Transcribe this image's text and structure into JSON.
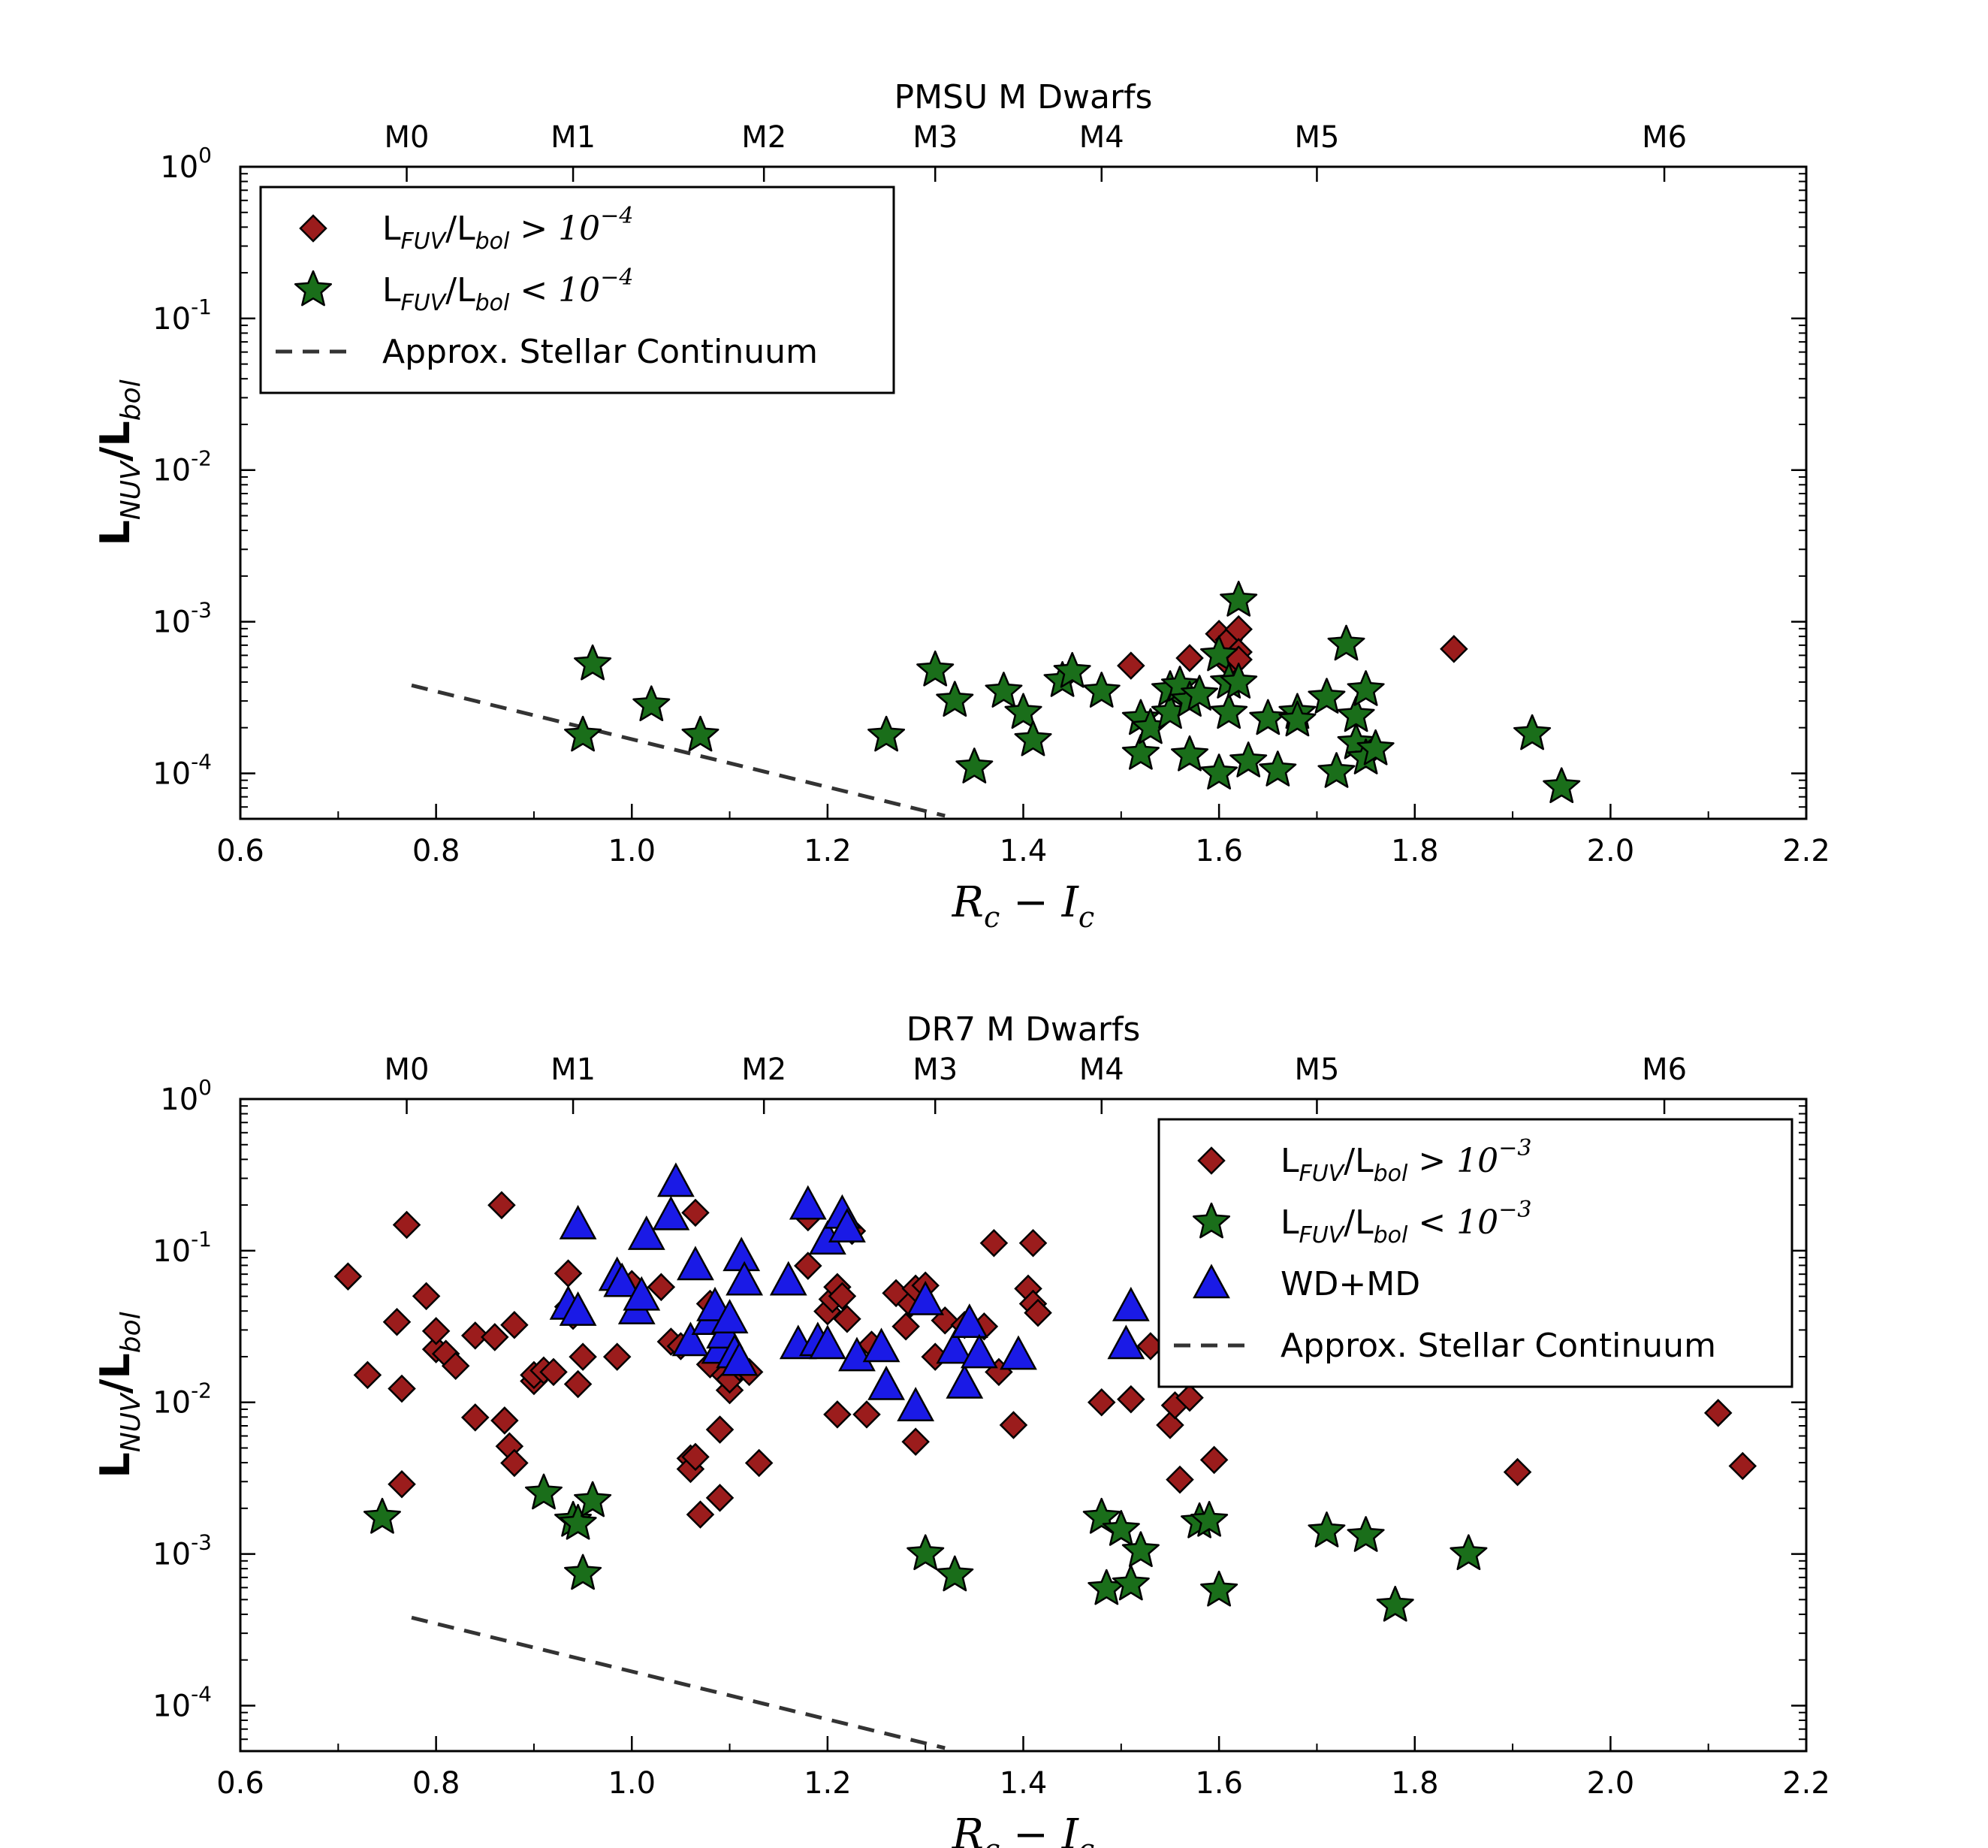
{
  "chart_data": [
    {
      "type": "scatter",
      "title": "PMSU M Dwarfs",
      "xlabel_main": "R",
      "xlabel_sub1": "c",
      "xlabel_minus": " − I",
      "xlabel_sub2": "c",
      "ylabel_main": "L",
      "ylabel_sub": "NUV",
      "ylabel_mid": "/L",
      "ylabel_sub2": "bol",
      "xlim": [
        0.6,
        2.2
      ],
      "ylim_log10": [
        -4.3,
        0
      ],
      "x_ticks": [
        "0.6",
        "0.8",
        "1.0",
        "1.2",
        "1.4",
        "1.6",
        "1.8",
        "2.0",
        "2.2"
      ],
      "x_tick_values": [
        0.6,
        0.8,
        1.0,
        1.2,
        1.4,
        1.6,
        1.8,
        2.0,
        2.2
      ],
      "y_tick_labels": [
        {
          "base": "10",
          "exp": "0",
          "value": 0
        },
        {
          "base": "10",
          "exp": "-1",
          "value": -1
        },
        {
          "base": "10",
          "exp": "-2",
          "value": -2
        },
        {
          "base": "10",
          "exp": "-3",
          "value": -3
        },
        {
          "base": "10",
          "exp": "-4",
          "value": -4
        }
      ],
      "top_ticks": [
        {
          "label": "M0",
          "x": 0.77
        },
        {
          "label": "M1",
          "x": 0.94
        },
        {
          "label": "M2",
          "x": 1.135
        },
        {
          "label": "M3",
          "x": 1.31
        },
        {
          "label": "M4",
          "x": 1.48
        },
        {
          "label": "M5",
          "x": 1.7
        },
        {
          "label": "M6",
          "x": 2.055
        }
      ],
      "legend": {
        "position": "upper-left",
        "entries": [
          {
            "marker": "diamond",
            "label_pre": "L",
            "label_sub": "FUV",
            "label_mid": "/L",
            "label_sub2": "bol",
            "label_op": " > ",
            "label_base": "10",
            "label_exp": "−4"
          },
          {
            "marker": "star",
            "label_pre": "L",
            "label_sub": "FUV",
            "label_mid": "/L",
            "label_sub2": "bol",
            "label_op": " < ",
            "label_base": "10",
            "label_exp": "−4"
          },
          {
            "marker": "dash",
            "label_text": "Approx. Stellar Continuum"
          }
        ]
      },
      "continuum": {
        "x": [
          0.775,
          1.32
        ],
        "log10y": [
          -3.42,
          -4.28
        ]
      },
      "series": [
        {
          "name": "LFUV/Lbol > 1e-4",
          "marker": "diamond",
          "color": "#9b1c1c",
          "points": [
            [
              1.51,
              -3.29
            ],
            [
              1.57,
              -3.24
            ],
            [
              1.6,
              -3.08
            ],
            [
              1.61,
              -3.12
            ],
            [
              1.62,
              -3.05
            ],
            [
              1.62,
              -3.2
            ],
            [
              1.61,
              -3.28
            ],
            [
              1.62,
              -3.25
            ],
            [
              1.84,
              -3.18
            ]
          ]
        },
        {
          "name": "LFUV/Lbol < 1e-4",
          "marker": "star",
          "color": "#1a6e1a",
          "points": [
            [
              0.95,
              -3.75
            ],
            [
              0.96,
              -3.28
            ],
            [
              1.02,
              -3.55
            ],
            [
              1.07,
              -3.75
            ],
            [
              1.26,
              -3.75
            ],
            [
              1.31,
              -3.32
            ],
            [
              1.33,
              -3.52
            ],
            [
              1.35,
              -3.96
            ],
            [
              1.38,
              -3.46
            ],
            [
              1.4,
              -3.6
            ],
            [
              1.41,
              -3.78
            ],
            [
              1.44,
              -3.39
            ],
            [
              1.45,
              -3.33
            ],
            [
              1.48,
              -3.46
            ],
            [
              1.52,
              -3.64
            ],
            [
              1.52,
              -3.87
            ],
            [
              1.53,
              -3.7
            ],
            [
              1.55,
              -3.45
            ],
            [
              1.55,
              -3.6
            ],
            [
              1.56,
              -3.42
            ],
            [
              1.57,
              -3.52
            ],
            [
              1.57,
              -3.88
            ],
            [
              1.58,
              -3.48
            ],
            [
              1.6,
              -4.0
            ],
            [
              1.6,
              -3.22
            ],
            [
              1.61,
              -3.4
            ],
            [
              1.61,
              -3.6
            ],
            [
              1.62,
              -2.86
            ],
            [
              1.62,
              -3.4
            ],
            [
              1.63,
              -3.92
            ],
            [
              1.65,
              -3.64
            ],
            [
              1.66,
              -3.98
            ],
            [
              1.68,
              -3.6
            ],
            [
              1.68,
              -3.65
            ],
            [
              1.71,
              -3.5
            ],
            [
              1.72,
              -3.99
            ],
            [
              1.73,
              -3.15
            ],
            [
              1.74,
              -3.62
            ],
            [
              1.74,
              -3.8
            ],
            [
              1.75,
              -3.45
            ],
            [
              1.75,
              -3.9
            ],
            [
              1.76,
              -3.84
            ],
            [
              1.92,
              -3.74
            ],
            [
              1.95,
              -4.09
            ]
          ]
        }
      ]
    },
    {
      "type": "scatter",
      "title": "DR7 M Dwarfs",
      "xlabel_main": "R",
      "xlabel_sub1": "c",
      "xlabel_minus": " − I",
      "xlabel_sub2": "c",
      "ylabel_main": "L",
      "ylabel_sub": "NUV",
      "ylabel_mid": "/L",
      "ylabel_sub2": "bol",
      "xlim": [
        0.6,
        2.2
      ],
      "ylim_log10": [
        -4.3,
        0
      ],
      "x_ticks": [
        "0.6",
        "0.8",
        "1.0",
        "1.2",
        "1.4",
        "1.6",
        "1.8",
        "2.0",
        "2.2"
      ],
      "x_tick_values": [
        0.6,
        0.8,
        1.0,
        1.2,
        1.4,
        1.6,
        1.8,
        2.0,
        2.2
      ],
      "y_tick_labels": [
        {
          "base": "10",
          "exp": "0",
          "value": 0
        },
        {
          "base": "10",
          "exp": "-1",
          "value": -1
        },
        {
          "base": "10",
          "exp": "-2",
          "value": -2
        },
        {
          "base": "10",
          "exp": "-3",
          "value": -3
        },
        {
          "base": "10",
          "exp": "-4",
          "value": -4
        }
      ],
      "top_ticks": [
        {
          "label": "M0",
          "x": 0.77
        },
        {
          "label": "M1",
          "x": 0.94
        },
        {
          "label": "M2",
          "x": 1.135
        },
        {
          "label": "M3",
          "x": 1.31
        },
        {
          "label": "M4",
          "x": 1.48
        },
        {
          "label": "M5",
          "x": 1.7
        },
        {
          "label": "M6",
          "x": 2.055
        }
      ],
      "legend": {
        "position": "upper-right",
        "entries": [
          {
            "marker": "diamond",
            "label_pre": "L",
            "label_sub": "FUV",
            "label_mid": "/L",
            "label_sub2": "bol",
            "label_op": " > ",
            "label_base": "10",
            "label_exp": "−3"
          },
          {
            "marker": "star",
            "label_pre": "L",
            "label_sub": "FUV",
            "label_mid": "/L",
            "label_sub2": "bol",
            "label_op": " < ",
            "label_base": "10",
            "label_exp": "−3"
          },
          {
            "marker": "triangle",
            "label_text": "WD+MD"
          },
          {
            "marker": "dash",
            "label_text": "Approx. Stellar Continuum"
          }
        ]
      },
      "continuum": {
        "x": [
          0.775,
          1.32
        ],
        "log10y": [
          -3.42,
          -4.28
        ]
      },
      "series": [
        {
          "name": "LFUV/Lbol > 1e-3",
          "marker": "diamond",
          "color": "#9b1c1c",
          "points": [
            [
              0.71,
              -1.17
            ],
            [
              0.73,
              -1.82
            ],
            [
              0.76,
              -1.47
            ],
            [
              0.765,
              -1.91
            ],
            [
              0.765,
              -2.54
            ],
            [
              0.77,
              -0.83
            ],
            [
              0.79,
              -1.3
            ],
            [
              0.8,
              -1.65
            ],
            [
              0.8,
              -1.53
            ],
            [
              0.81,
              -1.68
            ],
            [
              0.82,
              -1.76
            ],
            [
              0.84,
              -1.56
            ],
            [
              0.84,
              -2.1
            ],
            [
              0.86,
              -1.57
            ],
            [
              0.867,
              -0.7
            ],
            [
              0.87,
              -2.12
            ],
            [
              0.875,
              -2.29
            ],
            [
              0.88,
              -2.4
            ],
            [
              0.88,
              -1.49
            ],
            [
              0.9,
              -1.86
            ],
            [
              0.9,
              -1.82
            ],
            [
              0.91,
              -1.79
            ],
            [
              0.92,
              -1.8
            ],
            [
              0.935,
              -1.15
            ],
            [
              0.935,
              -1.37
            ],
            [
              0.94,
              -1.43
            ],
            [
              0.945,
              -1.88
            ],
            [
              0.95,
              -1.7
            ],
            [
              0.985,
              -1.7
            ],
            [
              1.0,
              -1.22
            ],
            [
              1.03,
              -1.24
            ],
            [
              1.04,
              -1.6
            ],
            [
              1.05,
              -1.63
            ],
            [
              1.06,
              -2.37
            ],
            [
              1.06,
              -2.44
            ],
            [
              1.065,
              -2.36
            ],
            [
              1.065,
              -0.75
            ],
            [
              1.07,
              -2.74
            ],
            [
              1.08,
              -1.75
            ],
            [
              1.08,
              -1.35
            ],
            [
              1.09,
              -2.18
            ],
            [
              1.09,
              -2.63
            ],
            [
              1.095,
              -1.82
            ],
            [
              1.1,
              -1.92
            ],
            [
              1.1,
              -1.85
            ],
            [
              1.11,
              -1.77
            ],
            [
              1.12,
              -1.8
            ],
            [
              1.13,
              -2.4
            ],
            [
              1.18,
              -1.1
            ],
            [
              1.18,
              -0.78
            ],
            [
              1.2,
              -1.4
            ],
            [
              1.205,
              -1.32
            ],
            [
              1.21,
              -1.24
            ],
            [
              1.215,
              -1.3
            ],
            [
              1.22,
              -1.45
            ],
            [
              1.21,
              -2.08
            ],
            [
              1.225,
              -0.87
            ],
            [
              1.24,
              -2.08
            ],
            [
              1.245,
              -1.62
            ],
            [
              1.27,
              -1.28
            ],
            [
              1.28,
              -1.5
            ],
            [
              1.285,
              -1.35
            ],
            [
              1.29,
              -1.25
            ],
            [
              1.29,
              -2.26
            ],
            [
              1.3,
              -1.23
            ],
            [
              1.31,
              -1.7
            ],
            [
              1.32,
              -1.46
            ],
            [
              1.34,
              -1.49
            ],
            [
              1.36,
              -1.5
            ],
            [
              1.37,
              -0.95
            ],
            [
              1.375,
              -1.8
            ],
            [
              1.39,
              -2.15
            ],
            [
              1.405,
              -1.25
            ],
            [
              1.41,
              -0.95
            ],
            [
              1.41,
              -1.35
            ],
            [
              1.415,
              -1.41
            ],
            [
              1.48,
              -2.0
            ],
            [
              1.51,
              -1.98
            ],
            [
              1.53,
              -1.63
            ],
            [
              1.55,
              -2.15
            ],
            [
              1.555,
              -2.02
            ],
            [
              1.56,
              -2.51
            ],
            [
              1.57,
              -1.97
            ],
            [
              1.595,
              -2.38
            ],
            [
              1.905,
              -2.46
            ],
            [
              2.11,
              -2.07
            ],
            [
              2.135,
              -2.42
            ]
          ]
        },
        {
          "name": "LFUV/Lbol < 1e-3",
          "marker": "star",
          "color": "#1a6e1a",
          "points": [
            [
              0.745,
              -2.76
            ],
            [
              0.91,
              -2.6
            ],
            [
              0.94,
              -2.78
            ],
            [
              0.945,
              -2.8
            ],
            [
              0.95,
              -3.13
            ],
            [
              0.96,
              -2.65
            ],
            [
              1.3,
              -3.0
            ],
            [
              1.33,
              -3.14
            ],
            [
              1.48,
              -2.76
            ],
            [
              1.485,
              -3.23
            ],
            [
              1.5,
              -2.84
            ],
            [
              1.51,
              -3.2
            ],
            [
              1.52,
              -2.98
            ],
            [
              1.58,
              -2.79
            ],
            [
              1.59,
              -2.78
            ],
            [
              1.6,
              -3.24
            ],
            [
              1.71,
              -2.85
            ],
            [
              1.75,
              -2.88
            ],
            [
              1.78,
              -3.34
            ],
            [
              1.855,
              -3.0
            ]
          ]
        },
        {
          "name": "WD+MD",
          "marker": "triangle",
          "color": "#1a1ae6",
          "points": [
            [
              0.935,
              -1.36
            ],
            [
              0.945,
              -0.83
            ],
            [
              0.945,
              -1.4
            ],
            [
              0.985,
              -1.17
            ],
            [
              0.99,
              -1.21
            ],
            [
              1.005,
              -1.39
            ],
            [
              1.01,
              -1.3
            ],
            [
              1.015,
              -0.9
            ],
            [
              1.04,
              -0.77
            ],
            [
              1.045,
              -0.55
            ],
            [
              1.06,
              -1.6
            ],
            [
              1.065,
              -1.1
            ],
            [
              1.08,
              -1.46
            ],
            [
              1.085,
              -1.37
            ],
            [
              1.09,
              -1.65
            ],
            [
              1.095,
              -1.55
            ],
            [
              1.1,
              -1.45
            ],
            [
              1.105,
              -1.68
            ],
            [
              1.11,
              -1.73
            ],
            [
              1.112,
              -1.04
            ],
            [
              1.115,
              -1.2
            ],
            [
              1.16,
              -1.2
            ],
            [
              1.17,
              -1.62
            ],
            [
              1.18,
              -0.7
            ],
            [
              1.19,
              -1.6
            ],
            [
              1.2,
              -1.62
            ],
            [
              1.2,
              -0.93
            ],
            [
              1.215,
              -0.76
            ],
            [
              1.22,
              -0.85
            ],
            [
              1.23,
              -1.7
            ],
            [
              1.255,
              -1.64
            ],
            [
              1.26,
              -1.89
            ],
            [
              1.29,
              -2.03
            ],
            [
              1.3,
              -1.33
            ],
            [
              1.33,
              -1.65
            ],
            [
              1.34,
              -1.88
            ],
            [
              1.345,
              -1.48
            ],
            [
              1.355,
              -1.68
            ],
            [
              1.395,
              -1.69
            ],
            [
              1.505,
              -1.62
            ],
            [
              1.51,
              -1.37
            ]
          ]
        }
      ]
    }
  ]
}
